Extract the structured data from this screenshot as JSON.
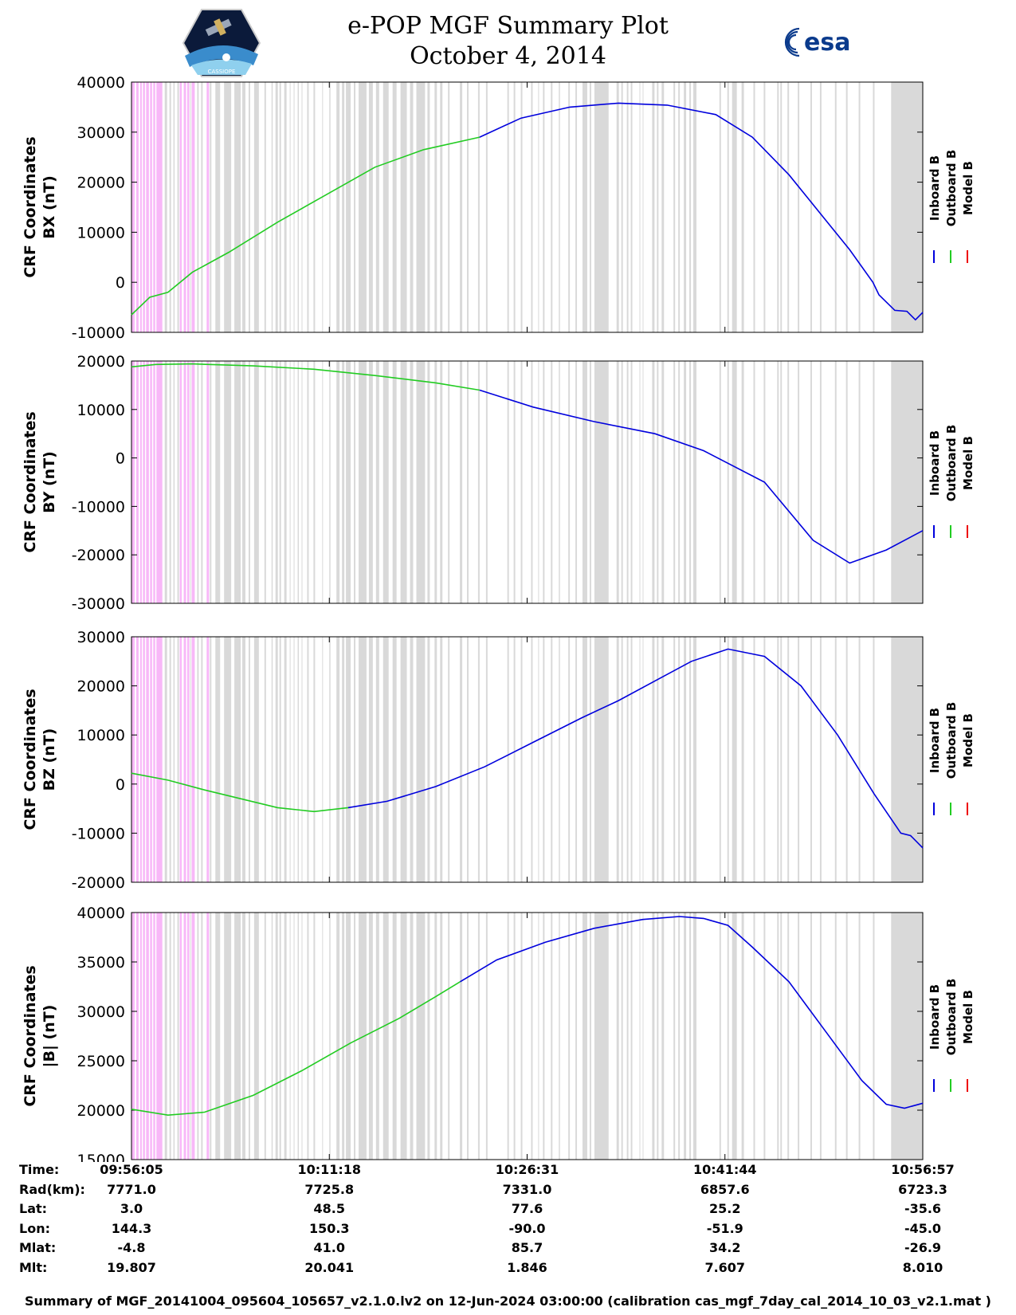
{
  "header": {
    "title": "e-POP MGF Summary Plot",
    "date": "October 4, 2014",
    "esa_logo_text": "esa",
    "cassiope_logo_text": "CASSIOPE"
  },
  "colors": {
    "inboard": "#0000dd",
    "outboard": "#22cc22",
    "model": "#ee0000",
    "gray_band": "#d9d9d9",
    "pink_band": "#f8b8f8"
  },
  "chart_data": [
    {
      "type": "line",
      "ylabel_line1": "CRF Coordinates",
      "ylabel_line2": "BX (nT)",
      "ylim": [
        -10000,
        40000
      ],
      "yticks": [
        "40000",
        "30000",
        "20000",
        "10000",
        "0",
        "-10000"
      ],
      "legend": [
        "Inboard B",
        "Outboard B",
        "Model B"
      ],
      "series": [
        {
          "name": "Outboard B",
          "x": [
            0,
            1.5,
            3,
            5,
            8,
            12,
            16,
            20,
            24,
            28.6
          ],
          "values": [
            -6500,
            -3000,
            -2000,
            2000,
            6000,
            12000,
            17500,
            23000,
            26500,
            29000
          ]
        },
        {
          "name": "Inboard B",
          "x": [
            28.6,
            32,
            36,
            40,
            44,
            48,
            51,
            54,
            57,
            59,
            60.9,
            61.4,
            62.7,
            63.7,
            64.4,
            65
          ],
          "values": [
            29000,
            32800,
            35000,
            35800,
            35400,
            33500,
            29000,
            21500,
            12500,
            6500,
            0,
            -2500,
            -5600,
            -5800,
            -7500,
            -6000
          ]
        }
      ]
    },
    {
      "type": "line",
      "ylabel_line1": "CRF Coordinates",
      "ylabel_line2": "BY (nT)",
      "ylim": [
        -30000,
        20000
      ],
      "yticks": [
        "20000",
        "10000",
        "0",
        "-10000",
        "-20000",
        "-30000"
      ],
      "legend": [
        "Inboard B",
        "Outboard B",
        "Model B"
      ],
      "series": [
        {
          "name": "Outboard B",
          "x": [
            0,
            2,
            5,
            10,
            15,
            20,
            25,
            28.6
          ],
          "values": [
            18800,
            19300,
            19400,
            19000,
            18300,
            17000,
            15500,
            14000
          ]
        },
        {
          "name": "Inboard B",
          "x": [
            28.6,
            33,
            38,
            43,
            47,
            52,
            56,
            59,
            62,
            65
          ],
          "values": [
            14000,
            10500,
            7500,
            5000,
            1500,
            -5000,
            -17000,
            -21700,
            -19000,
            -15000
          ]
        }
      ]
    },
    {
      "type": "line",
      "ylabel_line1": "CRF Coordinates",
      "ylabel_line2": "BZ (nT)",
      "ylim": [
        -20000,
        30000
      ],
      "yticks": [
        "30000",
        "20000",
        "10000",
        "0",
        "-10000",
        "-20000"
      ],
      "legend": [
        "Inboard B",
        "Outboard B",
        "Model B"
      ],
      "series": [
        {
          "name": "Outboard B",
          "x": [
            0,
            3,
            6,
            9,
            12,
            15,
            17.8
          ],
          "values": [
            2200,
            800,
            -1200,
            -3000,
            -4800,
            -5600,
            -4800
          ]
        },
        {
          "name": "Inboard B",
          "x": [
            17.8,
            21,
            25,
            29,
            33,
            37,
            40,
            43,
            46,
            49,
            52,
            55,
            58,
            61,
            63.2,
            64,
            65
          ],
          "values": [
            -4800,
            -3500,
            -500,
            3500,
            8500,
            13500,
            17000,
            21000,
            25000,
            27500,
            26000,
            20000,
            10000,
            -2000,
            -10000,
            -10500,
            -13000
          ]
        }
      ]
    },
    {
      "type": "line",
      "ylabel_line1": "CRF Coordinates",
      "ylabel_line2": "|B| (nT)",
      "ylim": [
        15000,
        40000
      ],
      "yticks": [
        "40000",
        "35000",
        "30000",
        "25000",
        "20000",
        "15000"
      ],
      "legend": [
        "Inboard B",
        "Outboard B",
        "Model B"
      ],
      "series": [
        {
          "name": "Outboard B",
          "x": [
            0,
            3,
            6,
            10,
            14,
            18,
            22,
            25,
            27
          ],
          "values": [
            20100,
            19500,
            19800,
            21500,
            24000,
            26800,
            29300,
            31500,
            33000
          ]
        },
        {
          "name": "Inboard B",
          "x": [
            27,
            30,
            34,
            38,
            42,
            45,
            47,
            49,
            51,
            54,
            57,
            60,
            62,
            63.5,
            65
          ],
          "values": [
            33000,
            35200,
            37000,
            38400,
            39300,
            39600,
            39400,
            38700,
            36500,
            33000,
            28000,
            23000,
            20600,
            20200,
            20700
          ]
        }
      ]
    }
  ],
  "info_table": {
    "labels": [
      "Time:",
      "Rad(km):",
      "Lat:",
      "Lon:",
      "Mlat:",
      "Mlt:"
    ],
    "columns": [
      [
        "09:56:05",
        "7771.0",
        "3.0",
        "144.3",
        "-4.8",
        "19.807"
      ],
      [
        "10:11:18",
        "7725.8",
        "48.5",
        "150.3",
        "41.0",
        "20.041"
      ],
      [
        "10:26:31",
        "7331.0",
        "77.6",
        "-90.0",
        "85.7",
        "1.846"
      ],
      [
        "10:41:44",
        "6857.6",
        "25.2",
        "-51.9",
        "34.2",
        "7.607"
      ],
      [
        "10:56:57",
        "6723.3",
        "-35.6",
        "-45.0",
        "-26.9",
        "8.010"
      ]
    ]
  },
  "footer": "Summary of MGF_20141004_095604_105657_v2.1.0.lv2 on 12-Jun-2024 03:00:00 (calibration cas_mgf_7day_cal_2014_10_03_v2.1.mat )"
}
